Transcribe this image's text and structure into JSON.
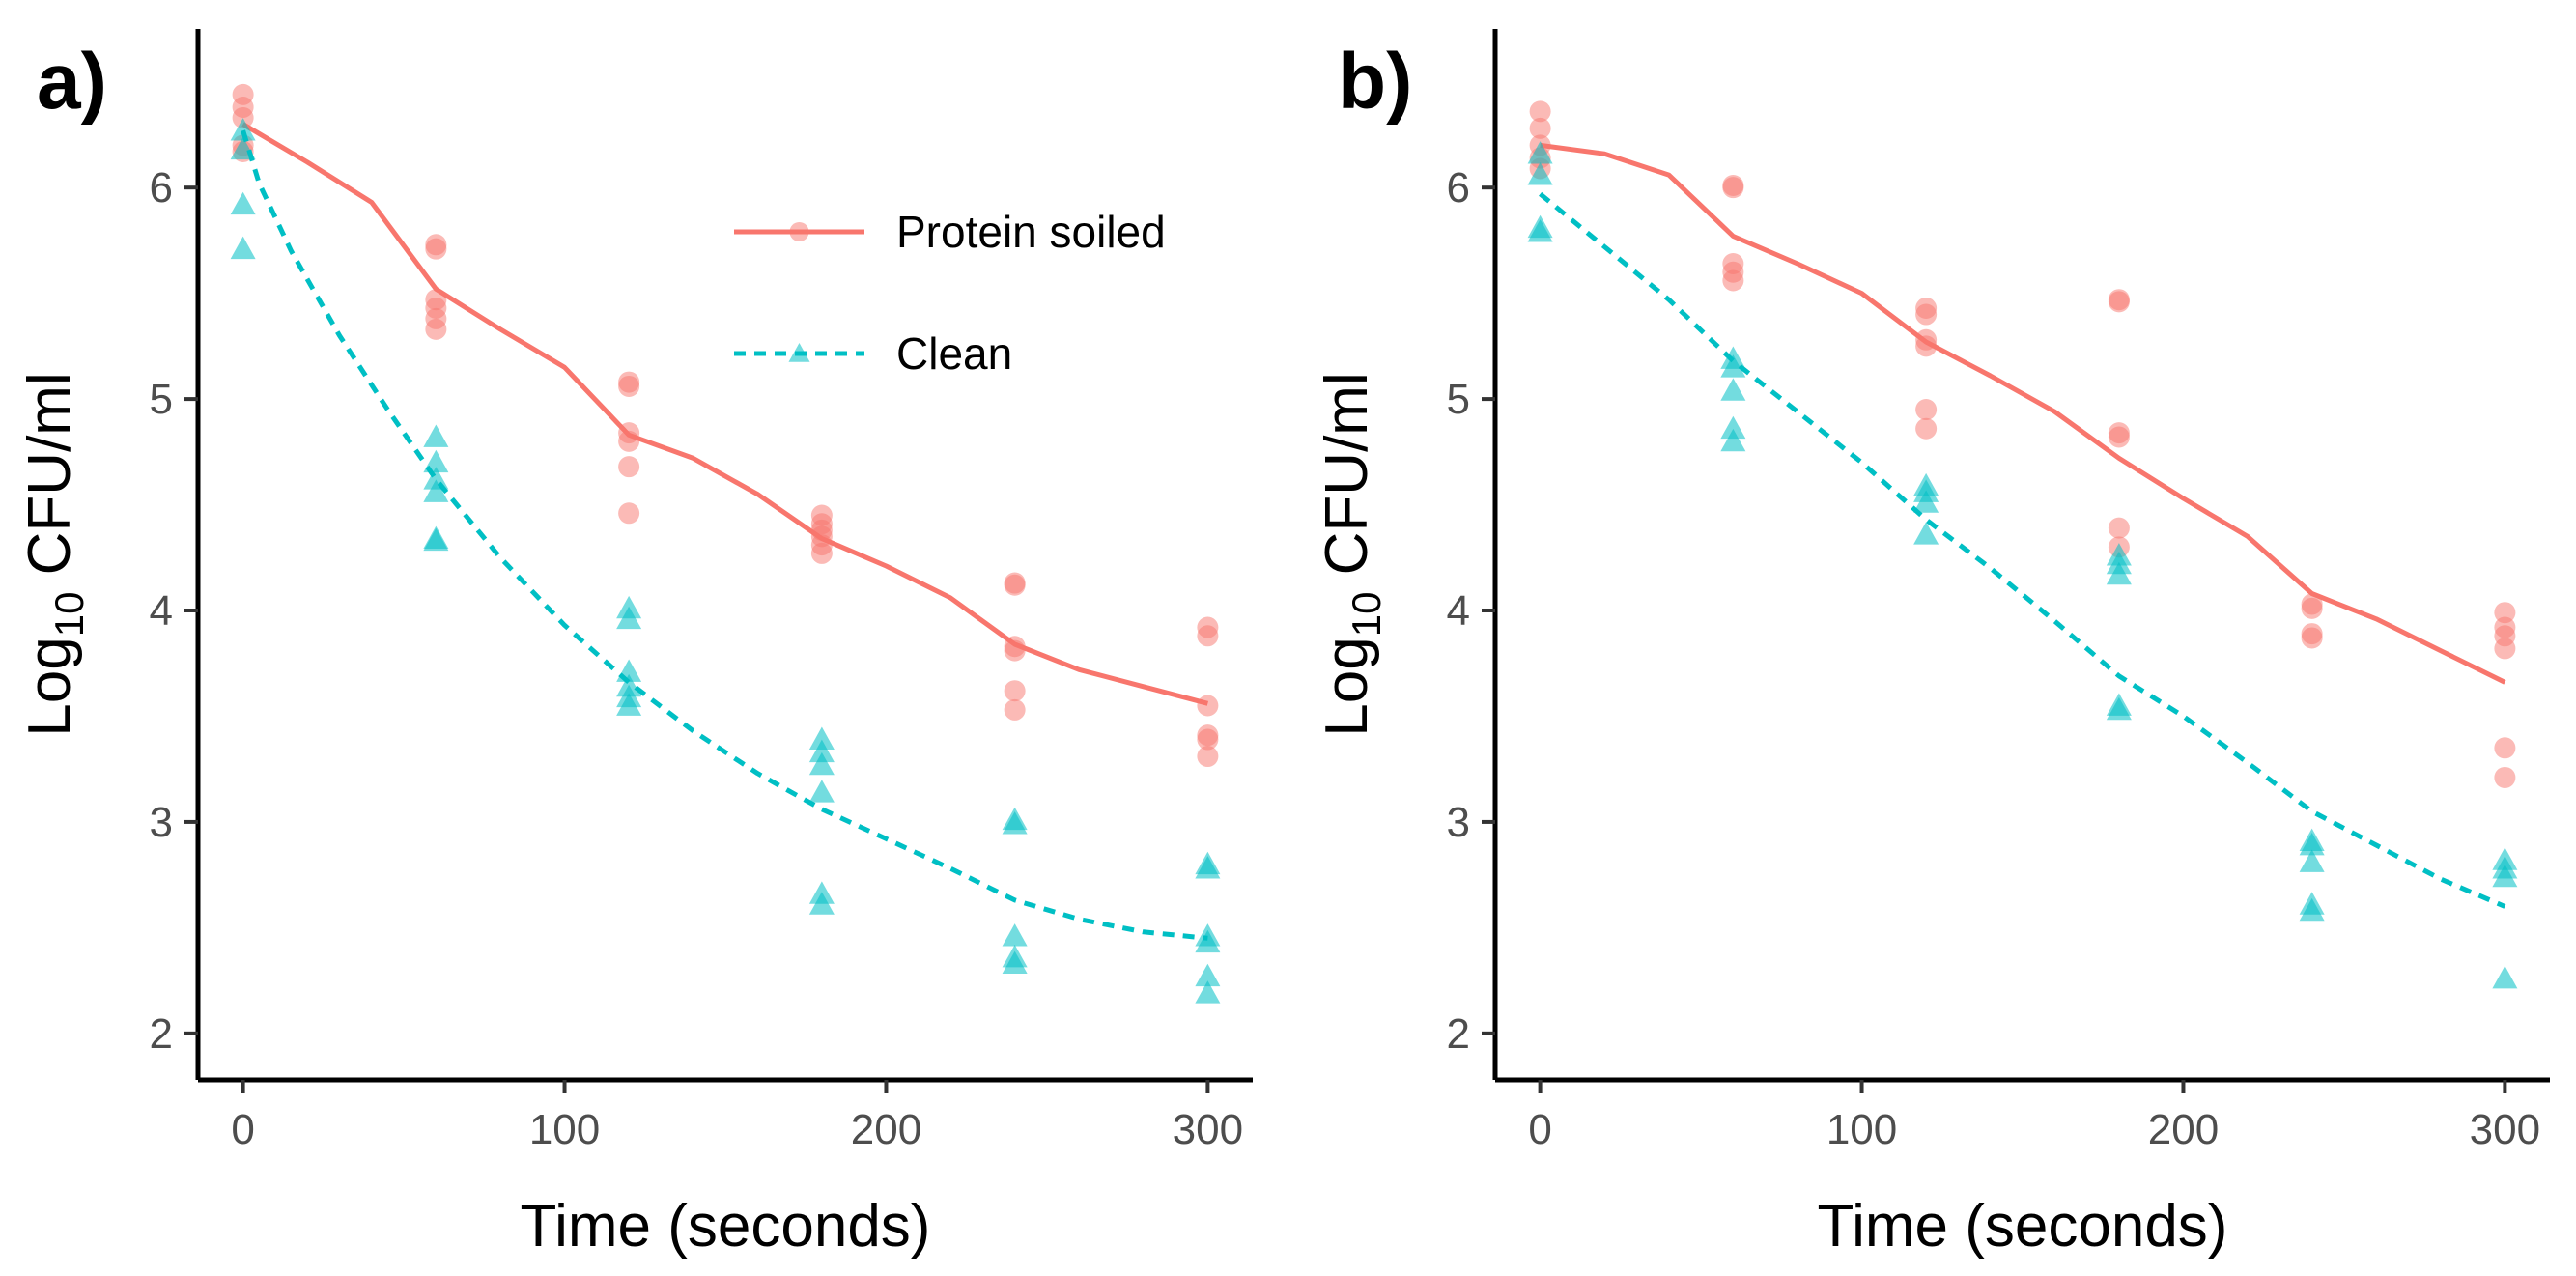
{
  "chart_data": [
    {
      "type": "scatter",
      "panel_label": "a)",
      "xlabel": "Time (seconds)",
      "ylabel": {
        "prefix": "Log",
        "subscript": "10",
        "suffix": " CFU/ml"
      },
      "xlim": [
        -14,
        314
      ],
      "ylim": [
        1.78,
        6.75
      ],
      "x_ticks": [
        0,
        100,
        200,
        300
      ],
      "y_ticks": [
        2,
        3,
        4,
        5,
        6
      ],
      "grid": false,
      "legend": {
        "placement": "top-right",
        "entries": [
          {
            "label": "Protein soiled",
            "series": "protein"
          },
          {
            "label": "Clean",
            "series": "clean"
          }
        ]
      },
      "series": [
        {
          "key": "protein",
          "name": "Protein soiled",
          "color": "#F8766D",
          "marker": "circle",
          "line": "solid",
          "points": [
            [
              0,
              6.44
            ],
            [
              0,
              6.38
            ],
            [
              0,
              6.33
            ],
            [
              0,
              6.2
            ],
            [
              0,
              6.17
            ],
            [
              60,
              5.73
            ],
            [
              60,
              5.71
            ],
            [
              60,
              5.47
            ],
            [
              60,
              5.43
            ],
            [
              60,
              5.38
            ],
            [
              60,
              5.33
            ],
            [
              120,
              5.08
            ],
            [
              120,
              5.06
            ],
            [
              120,
              4.84
            ],
            [
              120,
              4.8
            ],
            [
              120,
              4.68
            ],
            [
              120,
              4.46
            ],
            [
              180,
              4.45
            ],
            [
              180,
              4.41
            ],
            [
              180,
              4.38
            ],
            [
              180,
              4.35
            ],
            [
              180,
              4.31
            ],
            [
              180,
              4.27
            ],
            [
              240,
              4.13
            ],
            [
              240,
              4.12
            ],
            [
              240,
              3.83
            ],
            [
              240,
              3.81
            ],
            [
              240,
              3.62
            ],
            [
              240,
              3.53
            ],
            [
              300,
              3.92
            ],
            [
              300,
              3.88
            ],
            [
              300,
              3.55
            ],
            [
              300,
              3.41
            ],
            [
              300,
              3.39
            ],
            [
              300,
              3.31
            ]
          ],
          "fit": [
            [
              0,
              6.3
            ],
            [
              20,
              6.12
            ],
            [
              40,
              5.93
            ],
            [
              60,
              5.52
            ],
            [
              80,
              5.33
            ],
            [
              100,
              5.15
            ],
            [
              120,
              4.83
            ],
            [
              140,
              4.72
            ],
            [
              160,
              4.55
            ],
            [
              180,
              4.34
            ],
            [
              200,
              4.21
            ],
            [
              220,
              4.06
            ],
            [
              240,
              3.84
            ],
            [
              260,
              3.72
            ],
            [
              280,
              3.64
            ],
            [
              300,
              3.56
            ]
          ]
        },
        {
          "key": "clean",
          "name": "Clean",
          "color": "#00BFC4",
          "marker": "triangle",
          "line": "dashed",
          "points": [
            [
              0,
              6.27
            ],
            [
              0,
              6.18
            ],
            [
              0,
              5.92
            ],
            [
              0,
              5.71
            ],
            [
              60,
              4.82
            ],
            [
              60,
              4.7
            ],
            [
              60,
              4.62
            ],
            [
              60,
              4.56
            ],
            [
              60,
              4.34
            ],
            [
              60,
              4.33
            ],
            [
              120,
              4.01
            ],
            [
              120,
              3.96
            ],
            [
              120,
              3.71
            ],
            [
              120,
              3.64
            ],
            [
              120,
              3.59
            ],
            [
              120,
              3.55
            ],
            [
              180,
              3.39
            ],
            [
              180,
              3.33
            ],
            [
              180,
              3.27
            ],
            [
              180,
              3.14
            ],
            [
              180,
              2.66
            ],
            [
              180,
              2.61
            ],
            [
              240,
              3.01
            ],
            [
              240,
              2.99
            ],
            [
              240,
              2.46
            ],
            [
              240,
              2.36
            ],
            [
              240,
              2.33
            ],
            [
              300,
              2.8
            ],
            [
              300,
              2.78
            ],
            [
              300,
              2.46
            ],
            [
              300,
              2.43
            ],
            [
              300,
              2.27
            ],
            [
              300,
              2.19
            ]
          ],
          "fit": [
            [
              0,
              6.27
            ],
            [
              5,
              6.02
            ],
            [
              15,
              5.7
            ],
            [
              30,
              5.3
            ],
            [
              45,
              4.95
            ],
            [
              60,
              4.62
            ],
            [
              80,
              4.25
            ],
            [
              100,
              3.93
            ],
            [
              120,
              3.66
            ],
            [
              140,
              3.43
            ],
            [
              160,
              3.23
            ],
            [
              180,
              3.06
            ],
            [
              200,
              2.92
            ],
            [
              220,
              2.78
            ],
            [
              240,
              2.63
            ],
            [
              260,
              2.54
            ],
            [
              280,
              2.48
            ],
            [
              300,
              2.45
            ]
          ]
        }
      ]
    },
    {
      "type": "scatter",
      "panel_label": "b)",
      "xlabel": "Time (seconds)",
      "ylabel": {
        "prefix": "Log",
        "subscript": "10",
        "suffix": " CFU/ml"
      },
      "xlim": [
        -14,
        314
      ],
      "ylim": [
        1.78,
        6.75
      ],
      "x_ticks": [
        0,
        100,
        200,
        300
      ],
      "y_ticks": [
        2,
        3,
        4,
        5,
        6
      ],
      "grid": false,
      "series": [
        {
          "key": "protein",
          "name": "Protein soiled",
          "color": "#F8766D",
          "marker": "circle",
          "line": "solid",
          "points": [
            [
              0,
              6.36
            ],
            [
              0,
              6.28
            ],
            [
              0,
              6.2
            ],
            [
              0,
              6.14
            ],
            [
              0,
              6.09
            ],
            [
              60,
              6.01
            ],
            [
              60,
              6.0
            ],
            [
              60,
              5.64
            ],
            [
              60,
              5.6
            ],
            [
              60,
              5.56
            ],
            [
              120,
              5.43
            ],
            [
              120,
              5.4
            ],
            [
              120,
              5.28
            ],
            [
              120,
              5.25
            ],
            [
              120,
              4.95
            ],
            [
              120,
              4.86
            ],
            [
              180,
              5.47
            ],
            [
              180,
              5.46
            ],
            [
              180,
              4.84
            ],
            [
              180,
              4.82
            ],
            [
              180,
              4.39
            ],
            [
              180,
              4.3
            ],
            [
              240,
              4.03
            ],
            [
              240,
              4.01
            ],
            [
              240,
              3.89
            ],
            [
              240,
              3.87
            ],
            [
              300,
              3.99
            ],
            [
              300,
              3.92
            ],
            [
              300,
              3.88
            ],
            [
              300,
              3.82
            ],
            [
              300,
              3.35
            ],
            [
              300,
              3.21
            ]
          ],
          "fit": [
            [
              0,
              6.2
            ],
            [
              20,
              6.16
            ],
            [
              40,
              6.06
            ],
            [
              60,
              5.77
            ],
            [
              80,
              5.64
            ],
            [
              100,
              5.5
            ],
            [
              120,
              5.27
            ],
            [
              140,
              5.11
            ],
            [
              160,
              4.94
            ],
            [
              180,
              4.72
            ],
            [
              200,
              4.53
            ],
            [
              220,
              4.35
            ],
            [
              240,
              4.08
            ],
            [
              260,
              3.96
            ],
            [
              280,
              3.81
            ],
            [
              300,
              3.66
            ]
          ]
        },
        {
          "key": "clean",
          "name": "Clean",
          "color": "#00BFC4",
          "marker": "triangle",
          "line": "dashed",
          "points": [
            [
              0,
              6.16
            ],
            [
              0,
              6.06
            ],
            [
              0,
              5.81
            ],
            [
              0,
              5.79
            ],
            [
              60,
              5.19
            ],
            [
              60,
              5.15
            ],
            [
              60,
              5.04
            ],
            [
              60,
              4.86
            ],
            [
              60,
              4.8
            ],
            [
              120,
              4.59
            ],
            [
              120,
              4.56
            ],
            [
              120,
              4.51
            ],
            [
              120,
              4.36
            ],
            [
              180,
              4.26
            ],
            [
              180,
              4.22
            ],
            [
              180,
              4.17
            ],
            [
              180,
              3.55
            ],
            [
              180,
              3.53
            ],
            [
              240,
              2.91
            ],
            [
              240,
              2.89
            ],
            [
              240,
              2.81
            ],
            [
              240,
              2.61
            ],
            [
              240,
              2.58
            ],
            [
              300,
              2.82
            ],
            [
              300,
              2.78
            ],
            [
              300,
              2.74
            ],
            [
              300,
              2.26
            ]
          ],
          "fit": [
            [
              0,
              5.97
            ],
            [
              20,
              5.72
            ],
            [
              40,
              5.47
            ],
            [
              60,
              5.18
            ],
            [
              80,
              4.94
            ],
            [
              100,
              4.7
            ],
            [
              120,
              4.43
            ],
            [
              140,
              4.2
            ],
            [
              160,
              3.95
            ],
            [
              180,
              3.69
            ],
            [
              200,
              3.5
            ],
            [
              220,
              3.28
            ],
            [
              240,
              3.05
            ],
            [
              260,
              2.89
            ],
            [
              280,
              2.73
            ],
            [
              300,
              2.6
            ]
          ]
        }
      ]
    }
  ]
}
